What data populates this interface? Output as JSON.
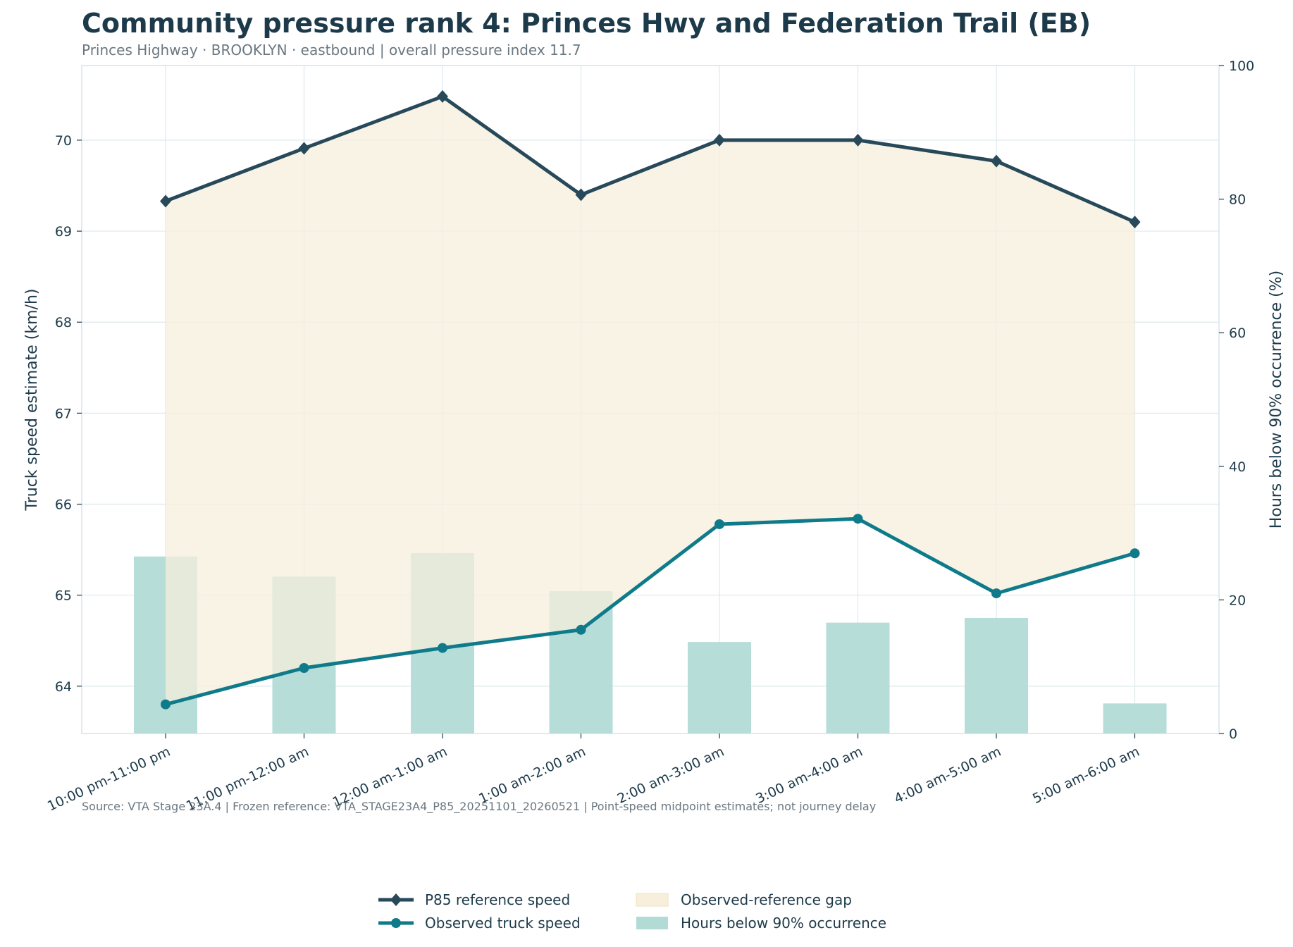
{
  "chart_data": {
    "type": "line",
    "title": "Community pressure rank 4: Princes Hwy and Federation Trail (EB)",
    "subtitle": "Princes Highway · BROOKLYN · eastbound | overall pressure index 11.7",
    "categories": [
      "10:00 pm-11:00 pm",
      "11:00 pm-12:00 am",
      "12:00 am-1:00 am",
      "1:00 am-2:00 am",
      "2:00 am-3:00 am",
      "3:00 am-4:00 am",
      "4:00 am-5:00 am",
      "5:00 am-6:00 am"
    ],
    "series": [
      {
        "name": "P85 reference speed",
        "axis": "left",
        "kind": "line",
        "marker": "diamond",
        "color": "#27495a",
        "values": [
          69.33,
          69.91,
          70.48,
          69.4,
          70.0,
          70.0,
          69.77,
          69.1
        ]
      },
      {
        "name": "Observed truck speed",
        "axis": "left",
        "kind": "line",
        "marker": "circle",
        "color": "#0f7b8a",
        "values": [
          63.8,
          64.2,
          64.42,
          64.62,
          65.78,
          65.84,
          65.02,
          65.46
        ]
      },
      {
        "name": "Hours below 90% occurrence",
        "axis": "right",
        "kind": "bar",
        "color": "#b2dbd6",
        "values": [
          26.5,
          23.5,
          27.0,
          21.3,
          13.7,
          16.6,
          17.3,
          4.5
        ]
      }
    ],
    "fill_between": {
      "name": "Observed-reference gap",
      "color": "#f7efdc"
    },
    "ylabel": "Truck speed estimate (km/h)",
    "ylabel_right": "Hours below 90% occurrence (%)",
    "ylim": [
      63.48,
      70.82
    ],
    "yticks": [
      64,
      65,
      66,
      67,
      68,
      69,
      70
    ],
    "ylim_right": [
      0,
      100
    ],
    "yticks_right": [
      0,
      20,
      40,
      60,
      80,
      100
    ],
    "grid": true,
    "legend_placement": "bottom-center",
    "source_note": "Source: VTA Stage 23A.4 | Frozen reference: VTA_STAGE23A4_P85_20251101_20260521 | Point-speed midpoint estimates; not journey delay"
  }
}
